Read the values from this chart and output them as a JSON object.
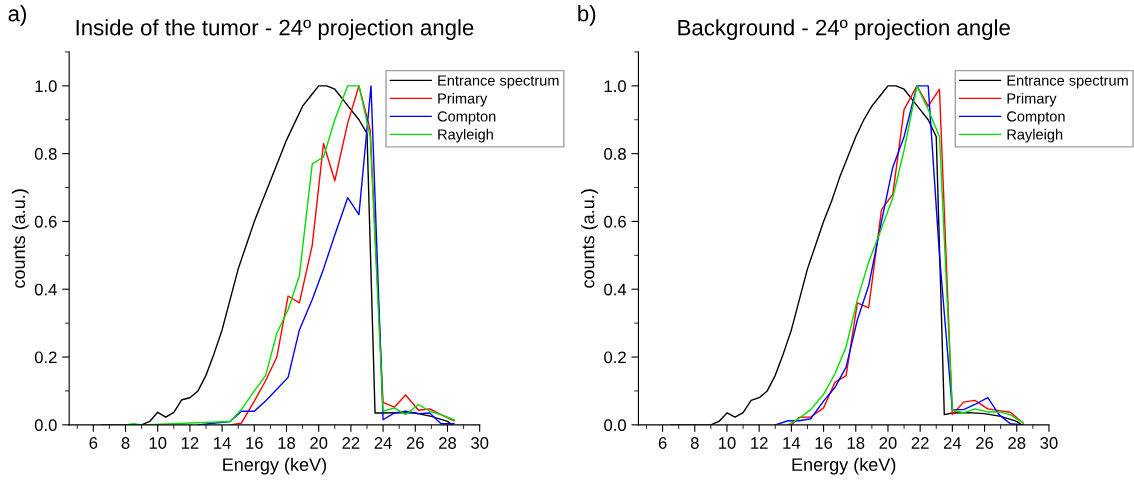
{
  "chart_data": [
    {
      "type": "line",
      "title": "Inside of the tumor - 24º projection angle",
      "xlabel": "Energy (keV)",
      "ylabel": "counts (a.u.)",
      "annotations": [
        "a)"
      ],
      "xlim": [
        4.5,
        30
      ],
      "xticks": [
        6,
        8,
        10,
        12,
        14,
        16,
        18,
        20,
        22,
        24,
        26,
        28,
        30
      ],
      "ylim": [
        0,
        1.1
      ],
      "yticks": [
        {
          "value": 0,
          "label": "0.0"
        },
        {
          "value": 0.2,
          "label": "0.2"
        },
        {
          "value": 0.4,
          "label": "0.4"
        },
        {
          "value": 0.6,
          "label": "0.6"
        },
        {
          "value": 0.8,
          "label": "0.8"
        },
        {
          "value": 1.0,
          "label": "1.0"
        }
      ],
      "grid": false,
      "legend": "top right",
      "marker": "none",
      "line_style": "solid",
      "series": [
        {
          "name": "Entrance spectrum",
          "color": "#000000",
          "x": [
            6.5,
            8,
            9,
            9.5,
            10,
            10.5,
            11,
            11.5,
            12,
            12.5,
            13,
            13.5,
            14,
            14.5,
            15,
            15.5,
            16,
            16.5,
            17,
            17.5,
            18,
            18.5,
            19,
            19.5,
            20,
            20.5,
            21,
            21.5,
            22,
            22.5,
            23,
            23.5,
            24,
            25,
            26,
            27,
            28,
            28.3
          ],
          "values": [
            0,
            0,
            0,
            0.01,
            0.037,
            0.023,
            0.037,
            0.074,
            0.08,
            0.1,
            0.146,
            0.21,
            0.28,
            0.37,
            0.46,
            0.53,
            0.6,
            0.66,
            0.72,
            0.78,
            0.84,
            0.89,
            0.94,
            0.97,
            1.0,
            1.0,
            0.99,
            0.96,
            0.93,
            0.9,
            0.86,
            0.035,
            0.035,
            0.036,
            0.035,
            0.025,
            0.01,
            0.0
          ]
        },
        {
          "name": "Primary",
          "color": "#ff0000",
          "x": [
            14.5,
            15.2,
            16,
            16.7,
            17.4,
            18.1,
            18.8,
            19.6,
            20.3,
            21,
            21.8,
            22.5,
            23.2,
            24,
            24.7,
            25.4,
            26.2,
            26.9,
            27.6,
            28.4
          ],
          "values": [
            0,
            0.005,
            0.07,
            0.13,
            0.2,
            0.38,
            0.36,
            0.53,
            0.83,
            0.72,
            0.89,
            1.0,
            0.87,
            0.066,
            0.052,
            0.088,
            0.043,
            0.047,
            0.03,
            0.012
          ]
        },
        {
          "name": "Compton",
          "color": "#0000ff",
          "x": [
            12.5,
            14.5,
            15.2,
            16,
            16.7,
            17.4,
            18.1,
            18.8,
            19.6,
            20.3,
            21,
            21.8,
            22.5,
            23.25,
            24,
            24.7,
            25.4,
            26.2,
            26.9,
            27.6,
            28.4
          ],
          "values": [
            0,
            0.01,
            0.04,
            0.04,
            0.07,
            0.105,
            0.14,
            0.28,
            0.37,
            0.46,
            0.56,
            0.67,
            0.62,
            1.0,
            0.015,
            0.035,
            0.04,
            0.033,
            0.035,
            0.003,
            0.003
          ]
        },
        {
          "name": "Rayleigh",
          "color": "#00dd00",
          "x": [
            8,
            8.5,
            9,
            14.5,
            15.2,
            16,
            16.7,
            17.4,
            18.1,
            18.8,
            19.6,
            20.3,
            21,
            21.8,
            22.5,
            23.2,
            24,
            24.7,
            25.4,
            26.2,
            26.9,
            27.6,
            28.4
          ],
          "values": [
            0,
            0.003,
            0,
            0.01,
            0.045,
            0.1,
            0.145,
            0.27,
            0.34,
            0.44,
            0.77,
            0.79,
            0.9,
            1.0,
            1.0,
            0.85,
            0.04,
            0.05,
            0.03,
            0.06,
            0.04,
            0.03,
            0.015
          ]
        }
      ]
    },
    {
      "type": "line",
      "title": "Background - 24º projection angle",
      "xlabel": "Energy (keV)",
      "ylabel": "counts (a.u.)",
      "annotations": [
        "b)"
      ],
      "xlim": [
        4.5,
        30
      ],
      "xticks": [
        6,
        8,
        10,
        12,
        14,
        16,
        18,
        20,
        22,
        24,
        26,
        28,
        30
      ],
      "ylim": [
        0,
        1.1
      ],
      "yticks": [
        {
          "value": 0,
          "label": "0.0"
        },
        {
          "value": 0.2,
          "label": "0.2"
        },
        {
          "value": 0.4,
          "label": "0.4"
        },
        {
          "value": 0.6,
          "label": "0.6"
        },
        {
          "value": 0.8,
          "label": "0.8"
        },
        {
          "value": 1.0,
          "label": "1.0"
        }
      ],
      "grid": false,
      "legend": "top right",
      "marker": "none",
      "line_style": "solid",
      "series": [
        {
          "name": "Entrance spectrum",
          "color": "#000000",
          "x": [
            6.5,
            8,
            9,
            9.5,
            10,
            10.5,
            11,
            11.5,
            12,
            12.5,
            13,
            13.5,
            14,
            14.5,
            15,
            15.5,
            16,
            16.5,
            17,
            17.5,
            18,
            18.5,
            19,
            19.5,
            20,
            20.5,
            21,
            21.5,
            22,
            22.5,
            23,
            23.5,
            24,
            25,
            26,
            27,
            28,
            28.3
          ],
          "values": [
            0,
            0,
            0,
            0.01,
            0.035,
            0.023,
            0.036,
            0.072,
            0.08,
            0.1,
            0.146,
            0.21,
            0.28,
            0.37,
            0.46,
            0.53,
            0.6,
            0.66,
            0.73,
            0.79,
            0.85,
            0.9,
            0.94,
            0.97,
            1.0,
            1.0,
            0.99,
            0.96,
            0.93,
            0.9,
            0.85,
            0.03,
            0.035,
            0.036,
            0.033,
            0.025,
            0.01,
            0.0
          ]
        },
        {
          "name": "Primary",
          "color": "#ff0000",
          "x": [
            14,
            14.5,
            15.2,
            16,
            16.7,
            17.4,
            18.1,
            18.8,
            19.6,
            20.3,
            21,
            21.8,
            22.5,
            23.2,
            24,
            24.7,
            25.4,
            26.2,
            26.9,
            27.6,
            28.4
          ],
          "values": [
            0,
            0.022,
            0.023,
            0.05,
            0.125,
            0.145,
            0.36,
            0.345,
            0.635,
            0.68,
            0.93,
            1.0,
            0.94,
            0.99,
            0.03,
            0.067,
            0.072,
            0.047,
            0.042,
            0.037,
            0.005
          ]
        },
        {
          "name": "Compton",
          "color": "#0000ff",
          "x": [
            13,
            13.8,
            14.5,
            15.2,
            16,
            16.7,
            17.4,
            18.1,
            18.8,
            19.6,
            20.3,
            21,
            21.8,
            22.5,
            23.2,
            24,
            24.7,
            25.4,
            26.2,
            26.9,
            27.6,
            28.4
          ],
          "values": [
            0,
            0.012,
            0.012,
            0.018,
            0.07,
            0.11,
            0.17,
            0.31,
            0.41,
            0.6,
            0.76,
            0.85,
            1.0,
            1.0,
            0.5,
            0.045,
            0.045,
            0.06,
            0.08,
            0.03,
            0.003,
            0.0
          ]
        },
        {
          "name": "Rayleigh",
          "color": "#00dd00",
          "x": [
            13.8,
            14.5,
            15.2,
            16,
            16.7,
            17.4,
            18.1,
            18.8,
            19.6,
            20.3,
            21,
            21.8,
            22.5,
            23.2,
            24,
            24.7,
            25.4,
            26.2,
            26.9,
            27.6,
            28.4
          ],
          "values": [
            0,
            0.02,
            0.045,
            0.09,
            0.15,
            0.23,
            0.37,
            0.48,
            0.58,
            0.67,
            0.81,
            1.0,
            0.93,
            0.85,
            0.045,
            0.035,
            0.047,
            0.038,
            0.038,
            0.03,
            0.005
          ]
        }
      ]
    }
  ]
}
